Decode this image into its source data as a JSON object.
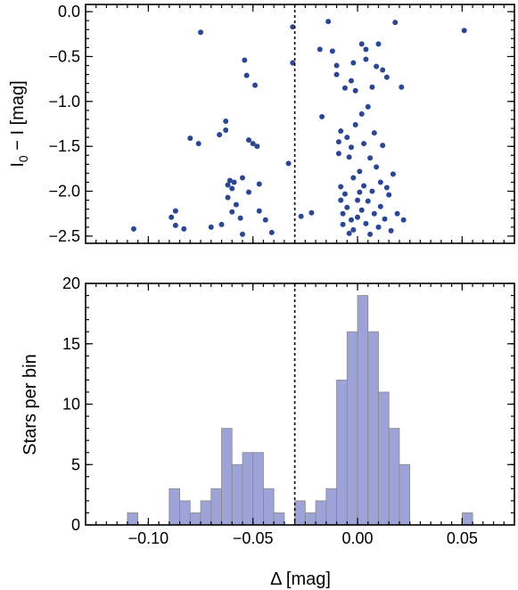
{
  "chart_data": [
    {
      "type": "scatter",
      "ylabel_parts": {
        "main": "I",
        "sub": "0",
        "rest": " − I  [mag]"
      },
      "xlim": [
        -0.13,
        0.075
      ],
      "ylim": [
        -2.58,
        0.08
      ],
      "yticks": [
        0.0,
        -0.5,
        -1.0,
        -1.5,
        -2.0,
        -2.5
      ],
      "ytick_labels": [
        "0.0",
        "−0.5",
        "−1.0",
        "−1.5",
        "−2.0",
        "−2.5"
      ],
      "xticks": [
        -0.1,
        -0.05,
        0.0,
        0.05
      ],
      "vline_x": -0.03,
      "points": [
        [
          -0.107,
          -2.42
        ],
        [
          -0.089,
          -2.29
        ],
        [
          -0.087,
          -2.22
        ],
        [
          -0.087,
          -2.38
        ],
        [
          -0.083,
          -2.42
        ],
        [
          -0.08,
          -1.41
        ],
        [
          -0.076,
          -1.47
        ],
        [
          -0.075,
          -0.23
        ],
        [
          -0.07,
          -2.4
        ],
        [
          -0.066,
          -1.37
        ],
        [
          -0.065,
          -2.37
        ],
        [
          -0.063,
          -1.32
        ],
        [
          -0.063,
          -1.22
        ],
        [
          -0.062,
          -1.93
        ],
        [
          -0.062,
          -2.07
        ],
        [
          -0.061,
          -1.88
        ],
        [
          -0.06,
          -1.97
        ],
        [
          -0.06,
          -2.23
        ],
        [
          -0.059,
          -1.9
        ],
        [
          -0.058,
          -2.15
        ],
        [
          -0.056,
          -2.3
        ],
        [
          -0.055,
          -2.48
        ],
        [
          -0.055,
          -1.85
        ],
        [
          -0.054,
          -0.54
        ],
        [
          -0.053,
          -0.71
        ],
        [
          -0.052,
          -2.01
        ],
        [
          -0.052,
          -1.43
        ],
        [
          -0.05,
          -1.47
        ],
        [
          -0.049,
          -0.82
        ],
        [
          -0.048,
          -1.5
        ],
        [
          -0.047,
          -1.92
        ],
        [
          -0.047,
          -2.22
        ],
        [
          -0.044,
          -2.32
        ],
        [
          -0.041,
          -2.46
        ],
        [
          -0.033,
          -1.69
        ],
        [
          -0.031,
          -0.57
        ],
        [
          -0.031,
          -0.17
        ],
        [
          -0.027,
          -2.28
        ],
        [
          -0.022,
          -2.24
        ],
        [
          -0.018,
          -0.42
        ],
        [
          -0.017,
          -1.17
        ],
        [
          -0.014,
          -0.11
        ],
        [
          -0.012,
          -0.44
        ],
        [
          -0.01,
          -0.7
        ],
        [
          -0.01,
          -0.6
        ],
        [
          -0.009,
          -1.45
        ],
        [
          -0.009,
          -1.58
        ],
        [
          -0.008,
          -1.33
        ],
        [
          -0.008,
          -1.95
        ],
        [
          -0.008,
          -2.1
        ],
        [
          -0.007,
          -2.25
        ],
        [
          -0.007,
          -2.37
        ],
        [
          -0.006,
          -0.85
        ],
        [
          -0.006,
          -2.03
        ],
        [
          -0.005,
          -1.4
        ],
        [
          -0.005,
          -2.18
        ],
        [
          -0.004,
          -1.62
        ],
        [
          -0.003,
          -0.77
        ],
        [
          -0.003,
          -1.51
        ],
        [
          -0.003,
          -2.32
        ],
        [
          -0.002,
          -1.85
        ],
        [
          -0.002,
          -2.43
        ],
        [
          -0.001,
          -0.88
        ],
        [
          -0.001,
          -1.26
        ],
        [
          0.0,
          -2.1
        ],
        [
          0.0,
          -2.29
        ],
        [
          0.001,
          -1.78
        ],
        [
          0.001,
          -2.01
        ],
        [
          0.002,
          -0.36
        ],
        [
          0.002,
          -1.14
        ],
        [
          0.002,
          -2.21
        ],
        [
          0.003,
          -1.47
        ],
        [
          0.003,
          -1.94
        ],
        [
          0.004,
          -2.36
        ],
        [
          0.004,
          -0.53
        ],
        [
          0.005,
          -1.06
        ],
        [
          0.005,
          -2.11
        ],
        [
          0.006,
          -1.63
        ],
        [
          0.006,
          -2.48
        ],
        [
          0.007,
          -0.84
        ],
        [
          0.007,
          -2.0
        ],
        [
          0.008,
          -1.35
        ],
        [
          0.008,
          -2.25
        ],
        [
          0.009,
          -0.61
        ],
        [
          0.009,
          -1.73
        ],
        [
          0.01,
          -2.4
        ],
        [
          0.01,
          -0.36
        ],
        [
          0.011,
          -1.9
        ],
        [
          0.011,
          -2.17
        ],
        [
          0.012,
          -0.65
        ],
        [
          0.012,
          -1.49
        ],
        [
          0.013,
          -2.31
        ],
        [
          0.014,
          -0.73
        ],
        [
          0.014,
          -1.96
        ],
        [
          0.015,
          -2.04
        ],
        [
          0.016,
          -2.44
        ],
        [
          0.017,
          -1.81
        ],
        [
          0.019,
          -2.25
        ],
        [
          0.021,
          -0.84
        ],
        [
          0.022,
          -2.32
        ],
        [
          0.051,
          -0.21
        ],
        [
          0.018,
          -0.12
        ],
        [
          -0.002,
          -0.57
        ],
        [
          0.004,
          -0.42
        ],
        [
          -0.004,
          -2.47
        ]
      ]
    },
    {
      "type": "bar",
      "ylabel": "Stars per bin",
      "xlabel": "Δ [mag]",
      "xlim": [
        -0.13,
        0.075
      ],
      "ylim": [
        0,
        20
      ],
      "yticks": [
        0,
        5,
        10,
        15,
        20
      ],
      "xticks": [
        -0.1,
        -0.05,
        0.0,
        0.05
      ],
      "xtick_labels": [
        "−0.10",
        "−0.05",
        "0.00",
        "0.05"
      ],
      "vline_x": -0.03,
      "bin_width": 0.005,
      "bins_left": [
        -0.11,
        -0.09,
        -0.085,
        -0.08,
        -0.075,
        -0.07,
        -0.065,
        -0.06,
        -0.055,
        -0.05,
        -0.045,
        -0.04,
        -0.03,
        -0.025,
        -0.02,
        -0.015,
        -0.01,
        -0.005,
        0.0,
        0.005,
        0.01,
        0.015,
        0.02,
        0.05
      ],
      "values": [
        1,
        3,
        2,
        1,
        2,
        3,
        8,
        5,
        6,
        6,
        3,
        1,
        2,
        1,
        2,
        3,
        12,
        16,
        19,
        16,
        11,
        8,
        5,
        1
      ]
    }
  ]
}
